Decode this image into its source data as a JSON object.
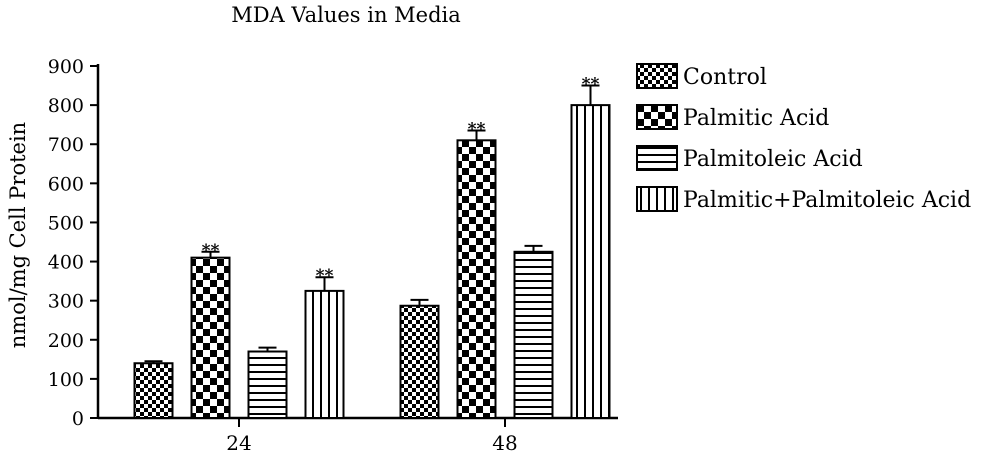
{
  "chart_data": {
    "type": "bar",
    "title": "MDA Values in Media",
    "xlabel": "",
    "ylabel": "nmol/mg Cell Protein",
    "ylim": [
      0,
      900
    ],
    "yticks": [
      0,
      100,
      200,
      300,
      400,
      500,
      600,
      700,
      800,
      900
    ],
    "categories": [
      "24",
      "48"
    ],
    "legend_position": "right",
    "grid": false,
    "series": [
      {
        "name": "Control",
        "pattern": "fine-checker",
        "values": [
          140,
          287
        ],
        "errors": [
          5,
          15
        ],
        "significance": [
          "",
          ""
        ]
      },
      {
        "name": "Palmitic Acid",
        "pattern": "coarse-checker",
        "values": [
          410,
          710
        ],
        "errors": [
          15,
          25
        ],
        "significance": [
          "**",
          "**"
        ]
      },
      {
        "name": "Palmitoleic Acid",
        "pattern": "horizontal-lines",
        "values": [
          170,
          425
        ],
        "errors": [
          10,
          15
        ],
        "significance": [
          "",
          ""
        ]
      },
      {
        "name": "Palmitic+Palmitoleic Acid",
        "pattern": "vertical-lines",
        "values": [
          325,
          800
        ],
        "errors": [
          35,
          50
        ],
        "significance": [
          "**",
          "**"
        ]
      }
    ]
  }
}
